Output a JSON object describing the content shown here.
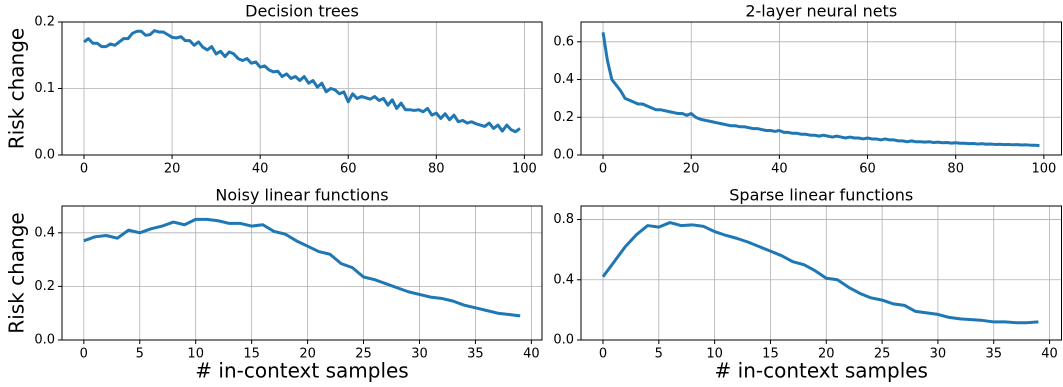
{
  "chart_data": [
    {
      "type": "line",
      "title": "Decision trees",
      "ylabel": "Risk change",
      "x": [
        0,
        1,
        2,
        3,
        4,
        5,
        6,
        7,
        8,
        9,
        10,
        11,
        12,
        13,
        14,
        15,
        16,
        17,
        18,
        19,
        20,
        21,
        22,
        23,
        24,
        25,
        26,
        27,
        28,
        29,
        30,
        31,
        32,
        33,
        34,
        35,
        36,
        37,
        38,
        39,
        40,
        41,
        42,
        43,
        44,
        45,
        46,
        47,
        48,
        49,
        50,
        51,
        52,
        53,
        54,
        55,
        56,
        57,
        58,
        59,
        60,
        61,
        62,
        63,
        64,
        65,
        66,
        67,
        68,
        69,
        70,
        71,
        72,
        73,
        74,
        75,
        76,
        77,
        78,
        79,
        80,
        81,
        82,
        83,
        84,
        85,
        86,
        87,
        88,
        89,
        90,
        91,
        92,
        93,
        94,
        95,
        96,
        97,
        98,
        99
      ],
      "values": [
        0.17,
        0.175,
        0.168,
        0.168,
        0.163,
        0.163,
        0.167,
        0.165,
        0.17,
        0.175,
        0.175,
        0.183,
        0.186,
        0.186,
        0.18,
        0.181,
        0.187,
        0.185,
        0.185,
        0.181,
        0.177,
        0.176,
        0.178,
        0.172,
        0.172,
        0.165,
        0.17,
        0.162,
        0.158,
        0.163,
        0.152,
        0.156,
        0.148,
        0.155,
        0.152,
        0.145,
        0.142,
        0.145,
        0.138,
        0.14,
        0.132,
        0.134,
        0.128,
        0.125,
        0.126,
        0.118,
        0.122,
        0.115,
        0.118,
        0.112,
        0.118,
        0.108,
        0.112,
        0.102,
        0.108,
        0.095,
        0.1,
        0.098,
        0.092,
        0.095,
        0.08,
        0.092,
        0.085,
        0.088,
        0.086,
        0.084,
        0.088,
        0.082,
        0.085,
        0.075,
        0.083,
        0.07,
        0.078,
        0.068,
        0.068,
        0.067,
        0.068,
        0.065,
        0.07,
        0.06,
        0.063,
        0.055,
        0.062,
        0.053,
        0.06,
        0.05,
        0.052,
        0.048,
        0.05,
        0.047,
        0.045,
        0.043,
        0.048,
        0.04,
        0.045,
        0.036,
        0.045,
        0.038,
        0.035,
        0.04
      ],
      "color": "#1f77b4",
      "xlim": [
        -5,
        104
      ],
      "ylim": [
        0,
        0.2
      ],
      "xticks": [
        0,
        20,
        40,
        60,
        80,
        100
      ],
      "yticks": [
        {
          "value": 0,
          "label": "0.0"
        },
        0.1,
        0.2
      ],
      "grid": true
    },
    {
      "type": "line",
      "title": "2-layer neural nets",
      "x": [
        0,
        1,
        2,
        3,
        4,
        5,
        6,
        7,
        8,
        9,
        10,
        11,
        12,
        13,
        14,
        15,
        16,
        17,
        18,
        19,
        20,
        21,
        22,
        23,
        24,
        25,
        26,
        27,
        28,
        29,
        30,
        31,
        32,
        33,
        34,
        35,
        36,
        37,
        38,
        39,
        40,
        41,
        42,
        43,
        44,
        45,
        46,
        47,
        48,
        49,
        50,
        51,
        52,
        53,
        54,
        55,
        56,
        57,
        58,
        59,
        60,
        61,
        62,
        63,
        64,
        65,
        66,
        67,
        68,
        69,
        70,
        71,
        72,
        73,
        74,
        75,
        76,
        77,
        78,
        79,
        80,
        81,
        82,
        83,
        84,
        85,
        86,
        87,
        88,
        89,
        90,
        91,
        92,
        93,
        94,
        95,
        96,
        97,
        98,
        99
      ],
      "values": [
        0.65,
        0.5,
        0.4,
        0.37,
        0.34,
        0.3,
        0.29,
        0.28,
        0.27,
        0.27,
        0.26,
        0.25,
        0.24,
        0.24,
        0.235,
        0.23,
        0.225,
        0.22,
        0.22,
        0.21,
        0.22,
        0.2,
        0.19,
        0.185,
        0.18,
        0.175,
        0.17,
        0.165,
        0.16,
        0.155,
        0.155,
        0.15,
        0.15,
        0.145,
        0.14,
        0.14,
        0.135,
        0.13,
        0.13,
        0.125,
        0.13,
        0.12,
        0.12,
        0.115,
        0.115,
        0.11,
        0.11,
        0.105,
        0.105,
        0.1,
        0.105,
        0.1,
        0.095,
        0.1,
        0.095,
        0.09,
        0.095,
        0.09,
        0.09,
        0.085,
        0.09,
        0.085,
        0.085,
        0.08,
        0.085,
        0.08,
        0.08,
        0.075,
        0.075,
        0.07,
        0.075,
        0.07,
        0.07,
        0.068,
        0.07,
        0.066,
        0.068,
        0.065,
        0.066,
        0.063,
        0.065,
        0.062,
        0.062,
        0.06,
        0.061,
        0.058,
        0.06,
        0.057,
        0.058,
        0.056,
        0.057,
        0.055,
        0.056,
        0.054,
        0.055,
        0.053,
        0.054,
        0.052,
        0.052,
        0.05
      ],
      "color": "#1f77b4",
      "xlim": [
        -5,
        104
      ],
      "ylim": [
        0,
        0.705
      ],
      "xticks": [
        0,
        20,
        40,
        60,
        80,
        100
      ],
      "yticks": [
        {
          "value": 0,
          "label": "0.0"
        },
        0.2,
        0.4,
        0.6
      ],
      "grid": true
    },
    {
      "type": "line",
      "title": "Noisy linear functions",
      "ylabel": "Risk change",
      "xlabel": "# in-context samples",
      "x": [
        0,
        1,
        2,
        3,
        4,
        5,
        6,
        7,
        8,
        9,
        10,
        11,
        12,
        13,
        14,
        15,
        16,
        17,
        18,
        19,
        20,
        21,
        22,
        23,
        24,
        25,
        26,
        27,
        28,
        29,
        30,
        31,
        32,
        33,
        34,
        35,
        36,
        37,
        38,
        39
      ],
      "values": [
        0.37,
        0.385,
        0.39,
        0.38,
        0.41,
        0.4,
        0.415,
        0.425,
        0.44,
        0.43,
        0.45,
        0.45,
        0.445,
        0.435,
        0.435,
        0.425,
        0.43,
        0.405,
        0.395,
        0.37,
        0.35,
        0.33,
        0.32,
        0.285,
        0.27,
        0.235,
        0.225,
        0.21,
        0.195,
        0.18,
        0.17,
        0.16,
        0.155,
        0.145,
        0.13,
        0.12,
        0.11,
        0.1,
        0.095,
        0.09
      ],
      "color": "#1f77b4",
      "xlim": [
        -1.95,
        40.95
      ],
      "ylim": [
        0,
        0.5
      ],
      "xticks": [
        0,
        5,
        10,
        15,
        20,
        25,
        30,
        35,
        40
      ],
      "yticks": [
        {
          "value": 0,
          "label": "0.0"
        },
        0.2,
        0.4
      ],
      "grid": true
    },
    {
      "type": "line",
      "title": "Sparse linear functions",
      "xlabel": "# in-context samples",
      "x": [
        0,
        1,
        2,
        3,
        4,
        5,
        6,
        7,
        8,
        9,
        10,
        11,
        12,
        13,
        14,
        15,
        16,
        17,
        18,
        19,
        20,
        21,
        22,
        23,
        24,
        25,
        26,
        27,
        28,
        29,
        30,
        31,
        32,
        33,
        34,
        35,
        36,
        37,
        38,
        39
      ],
      "values": [
        0.42,
        0.52,
        0.62,
        0.7,
        0.76,
        0.75,
        0.78,
        0.76,
        0.765,
        0.755,
        0.72,
        0.695,
        0.675,
        0.65,
        0.62,
        0.59,
        0.56,
        0.52,
        0.5,
        0.46,
        0.41,
        0.4,
        0.35,
        0.31,
        0.28,
        0.265,
        0.24,
        0.23,
        0.19,
        0.18,
        0.17,
        0.15,
        0.14,
        0.135,
        0.13,
        0.12,
        0.12,
        0.115,
        0.115,
        0.12
      ],
      "color": "#1f77b4",
      "xlim": [
        -1.97,
        41.07
      ],
      "ylim": [
        0,
        0.89
      ],
      "xticks": [
        0,
        5,
        10,
        15,
        20,
        25,
        30,
        35,
        40
      ],
      "yticks": [
        {
          "value": 0,
          "label": "0.0"
        },
        0.4,
        0.8
      ],
      "grid": true
    }
  ]
}
